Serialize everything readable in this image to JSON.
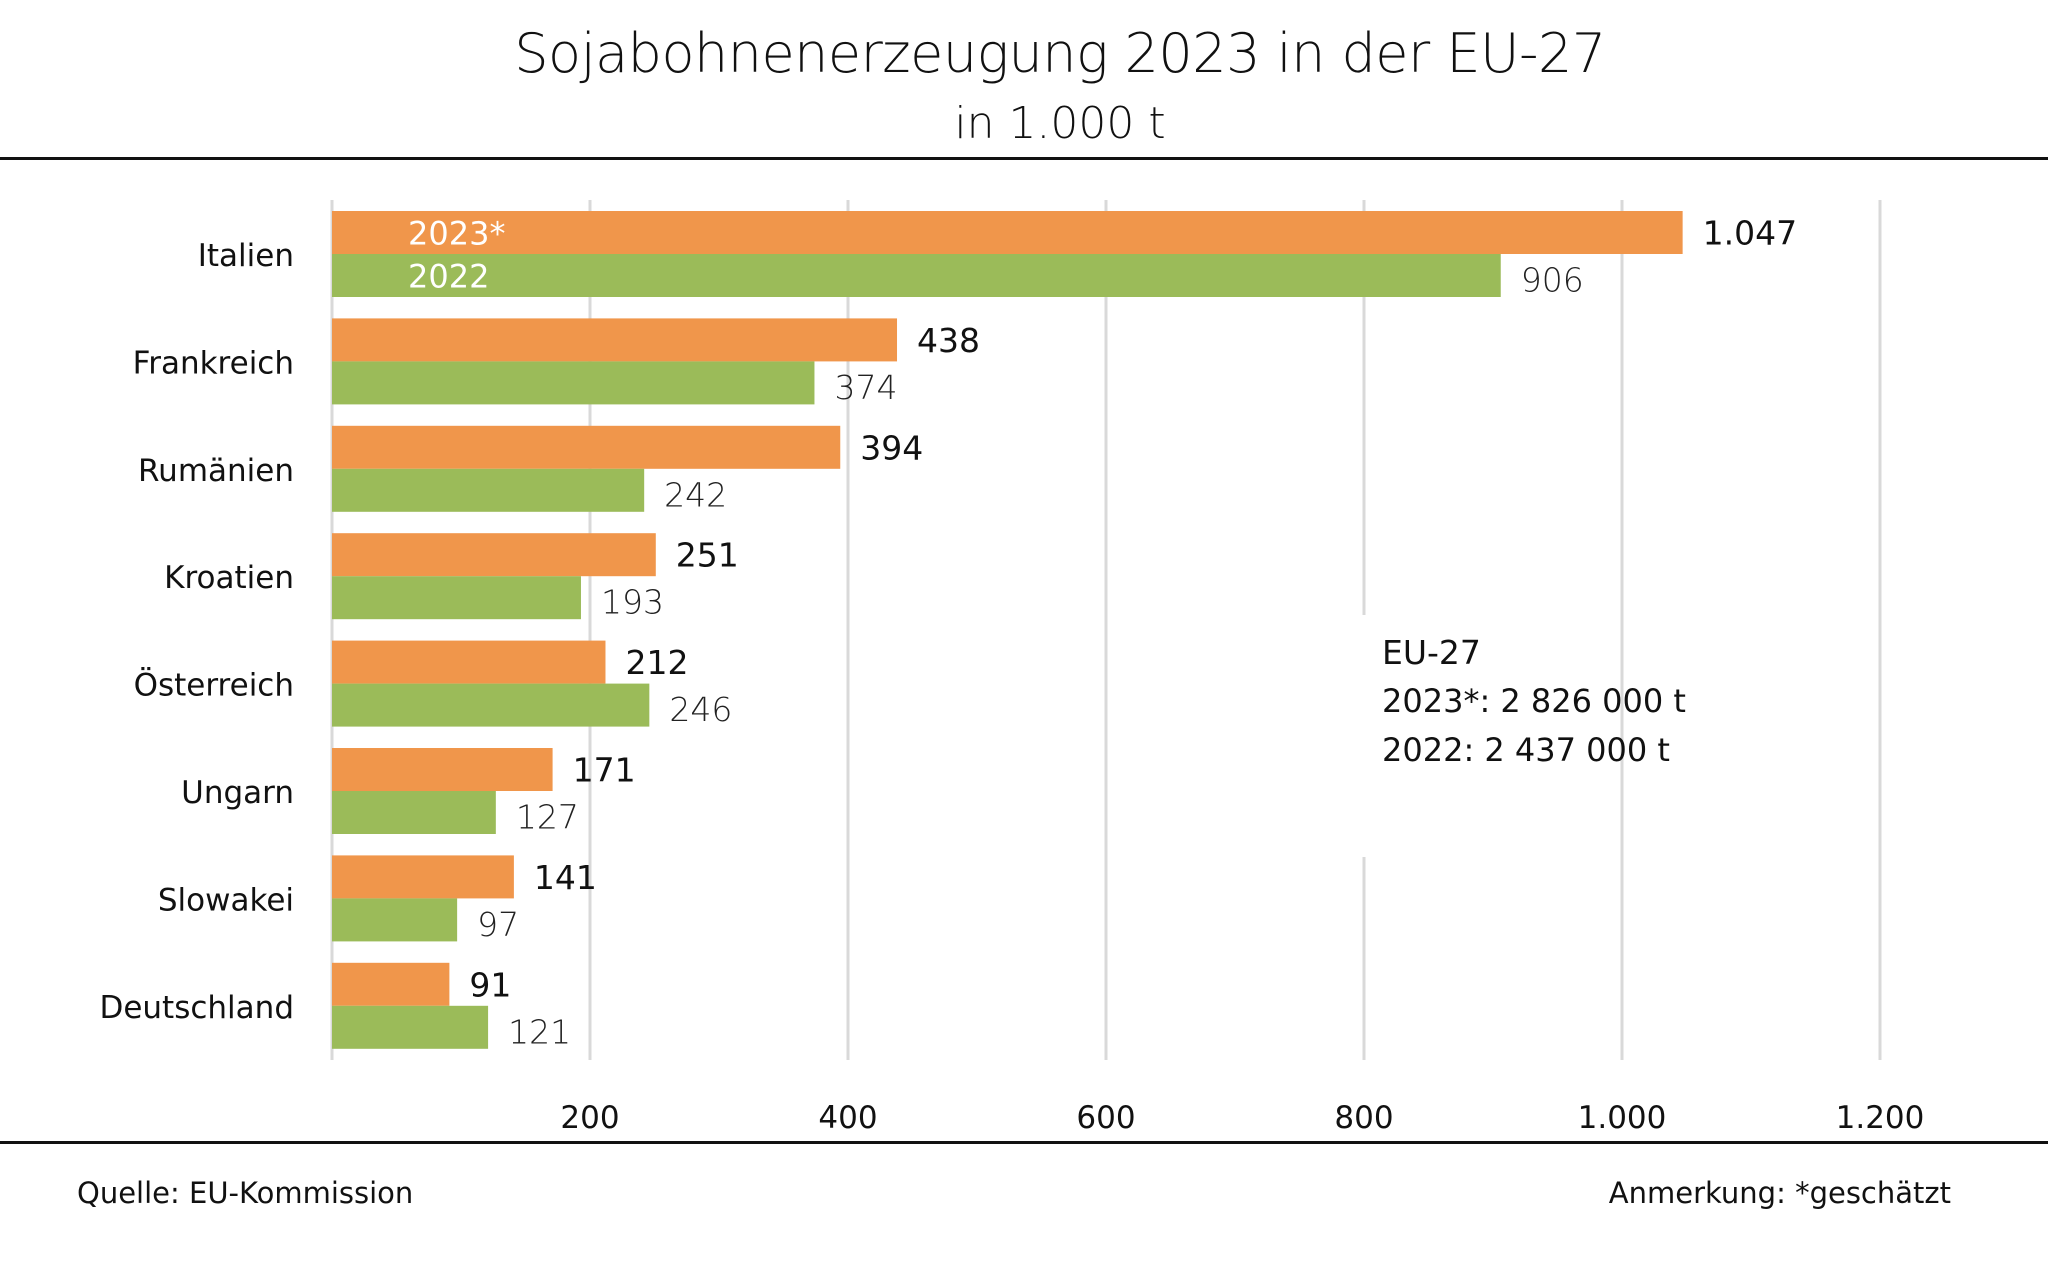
{
  "header": {
    "title": "Sojabohnenerzeugung 2023 in der EU-27",
    "subtitle": "in 1.000 t"
  },
  "summary_box": {
    "heading": "EU-27",
    "line_2023": "2023*: 2 826 000 t",
    "line_2022": "2022: 2 437 000 t"
  },
  "footer": {
    "source": "Quelle:  EU-Kommission",
    "note": "Anmerkung: *geschätzt"
  },
  "colors": {
    "series_2023": "#F0964B",
    "series_2022": "#9BBB59",
    "gridline": "#D9D9D9",
    "text": "#111111"
  },
  "chart_data": {
    "type": "bar",
    "orientation": "horizontal",
    "title": "Sojabohnenerzeugung 2023 in der EU-27",
    "subtitle": "in 1.000 t",
    "xlabel": "",
    "ylabel": "",
    "categories": [
      "Italien",
      "Frankreich",
      "Rumänien",
      "Kroatien",
      "Österreich",
      "Ungarn",
      "Slowakei",
      "Deutschland"
    ],
    "series": [
      {
        "name": "2023*",
        "values": [
          1047,
          438,
          394,
          251,
          212,
          171,
          141,
          91
        ],
        "labels": [
          "1.047",
          "438",
          "394",
          "251",
          "212",
          "171",
          "141",
          "91"
        ]
      },
      {
        "name": "2022",
        "values": [
          906,
          374,
          242,
          193,
          246,
          127,
          97,
          121
        ],
        "labels": [
          "906",
          "374",
          "242",
          "193",
          "246",
          "127",
          "97",
          "121"
        ]
      }
    ],
    "xlim": [
      0,
      1200
    ],
    "xticks": [
      200,
      400,
      600,
      800,
      1000,
      1200
    ],
    "xtick_labels": [
      "200",
      "400",
      "600",
      "800",
      "1.000",
      "1.200"
    ],
    "grid": true,
    "legend": "inside-first-bar-group"
  }
}
